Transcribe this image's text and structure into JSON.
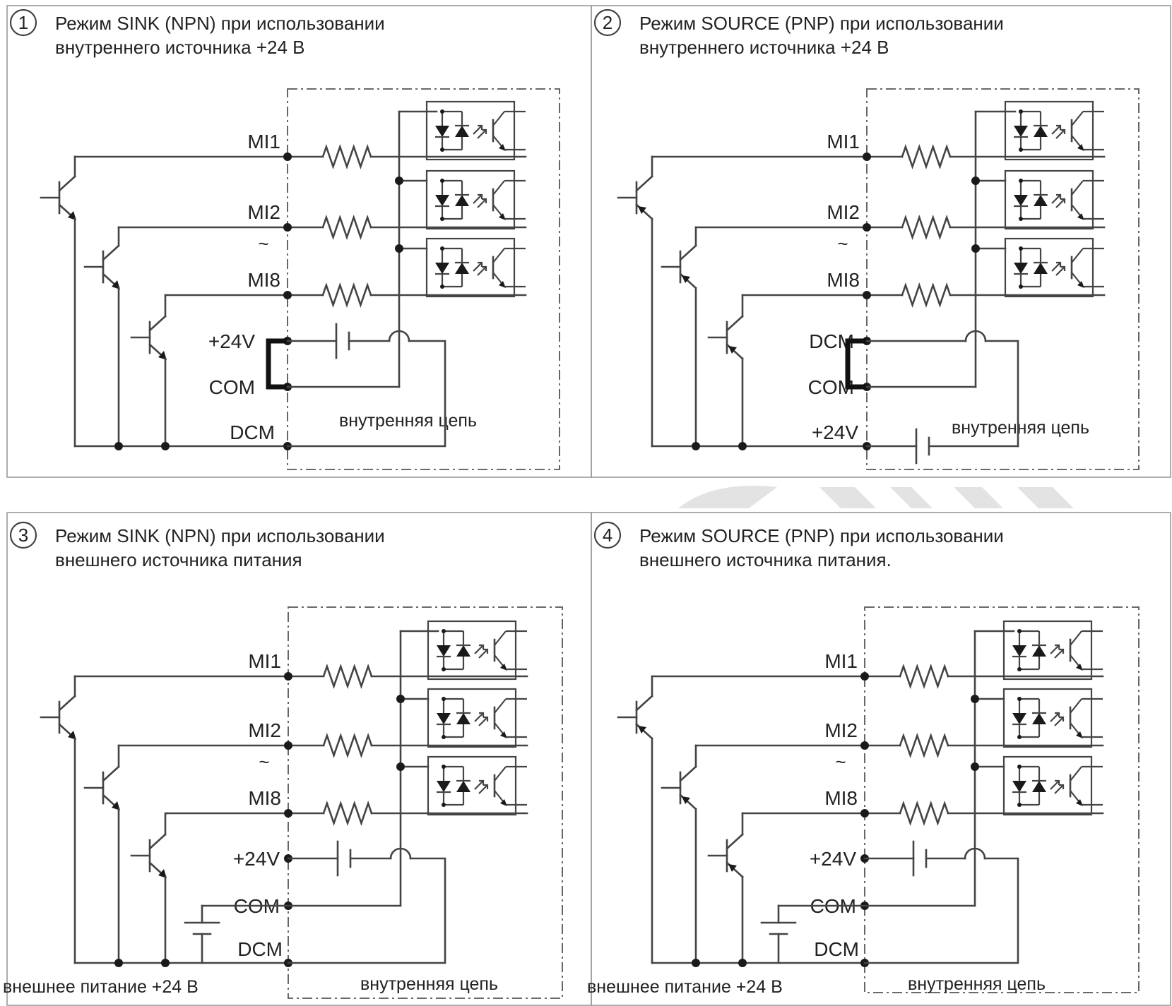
{
  "panels": [
    {
      "number": "1",
      "title_line1": "Режим SINK (NPN) при использовании",
      "title_line2": "внутреннего источника +24 В",
      "terminals": [
        "MI1",
        "MI2",
        "MI8",
        "+24V",
        "COM",
        "DCM"
      ],
      "range_mark": "~",
      "internal_label": "внутренняя цепь"
    },
    {
      "number": "2",
      "title_line1": "Режим SOURCE (PNP) при использовании",
      "title_line2": "внутреннего источника +24 В",
      "terminals": [
        "MI1",
        "MI2",
        "MI8",
        "DCM",
        "COM",
        "+24V"
      ],
      "range_mark": "~",
      "internal_label": "внутренняя цепь"
    },
    {
      "number": "3",
      "title_line1": "Режим SINK (NPN) при использовании",
      "title_line2": "внешнего источника питания",
      "terminals": [
        "MI1",
        "MI2",
        "MI8",
        "+24V",
        "COM",
        "DCM"
      ],
      "range_mark": "~",
      "internal_label": "внутренняя цепь",
      "external_label": "внешнее питание +24 В"
    },
    {
      "number": "4",
      "title_line1": "Режим SOURCE (PNP) при использовании",
      "title_line2": "внешнего источника питания.",
      "terminals": [
        "MI1",
        "MI2",
        "MI8",
        "+24V",
        "COM",
        "DCM"
      ],
      "range_mark": "~",
      "internal_label": "внутренняя цепь",
      "external_label": "внешнее питание +24 В"
    }
  ],
  "colors": {
    "line": "#444444",
    "border": "#9a9a9a",
    "watermark": "#e3e3e3"
  }
}
